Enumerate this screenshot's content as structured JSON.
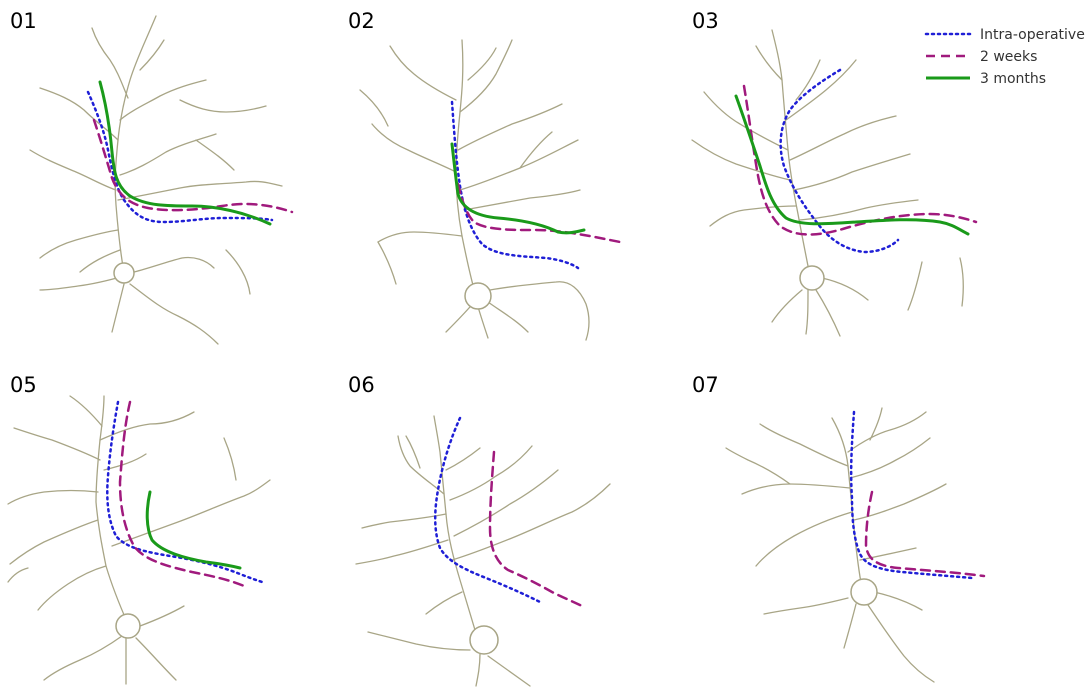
{
  "panels": [
    {
      "id": "p01",
      "label": "01"
    },
    {
      "id": "p02",
      "label": "02"
    },
    {
      "id": "p03",
      "label": "03"
    },
    {
      "id": "p05",
      "label": "05"
    },
    {
      "id": "p06",
      "label": "06"
    },
    {
      "id": "p07",
      "label": "07"
    }
  ],
  "legend": {
    "items": [
      {
        "key": "intraoperative",
        "label": "Intra-operative",
        "color": "#1f1fd6",
        "style": "dotted"
      },
      {
        "key": "twoweeks",
        "label": "2 weeks",
        "color": "#a01a7d",
        "style": "dashed"
      },
      {
        "key": "threemonths",
        "label": "3 months",
        "color": "#1a9a1a",
        "style": "solid"
      }
    ]
  },
  "colors": {
    "vessel": "#a8a586",
    "background": "#ffffff"
  }
}
